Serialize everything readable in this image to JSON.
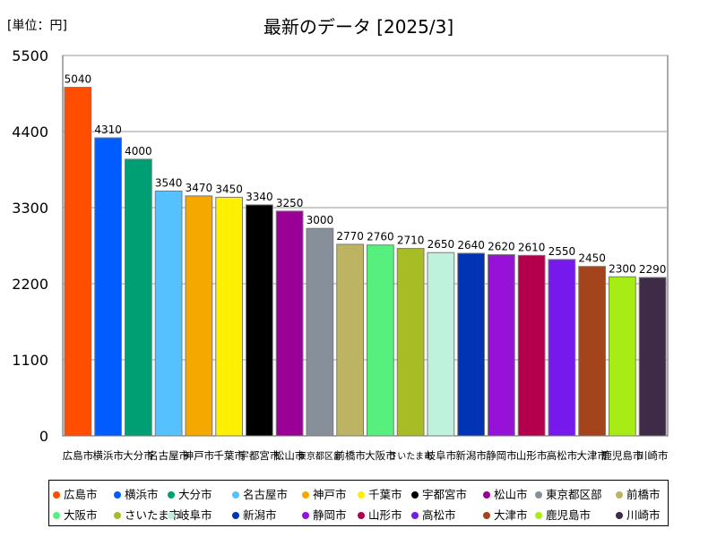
{
  "chart_data": {
    "type": "bar",
    "title": "最新のデータ [2025/3]",
    "unit_label": "[単位：円]",
    "xlabel": "",
    "ylabel": "",
    "ylim": [
      0,
      5500
    ],
    "yticks": [
      0,
      1100,
      2200,
      3300,
      4400,
      5500
    ],
    "grid": true,
    "legend_position": "bottom",
    "categories": [
      "広島市",
      "横浜市",
      "大分市",
      "名古屋市",
      "神戸市",
      "千葉市",
      "宇都宮市",
      "松山市",
      "東京都区部",
      "前橋市",
      "大阪市",
      "さいたま市",
      "岐阜市",
      "新潟市",
      "静岡市",
      "山形市",
      "高松市",
      "大津市",
      "鹿児島市",
      "川崎市"
    ],
    "values": [
      5040,
      4310,
      4000,
      3540,
      3470,
      3450,
      3340,
      3250,
      3000,
      2770,
      2760,
      2710,
      2650,
      2640,
      2620,
      2610,
      2550,
      2450,
      2300,
      2290
    ],
    "colors": [
      "#ff4e00",
      "#005cff",
      "#009e73",
      "#56c1ff",
      "#f5a800",
      "#fff000",
      "#000000",
      "#9b0096",
      "#868f9a",
      "#bcb462",
      "#57ef7d",
      "#a8bc26",
      "#bff2dc",
      "#0034b4",
      "#9712d7",
      "#b4004c",
      "#7519ec",
      "#a3441c",
      "#a8ec16",
      "#3d2b48"
    ]
  }
}
